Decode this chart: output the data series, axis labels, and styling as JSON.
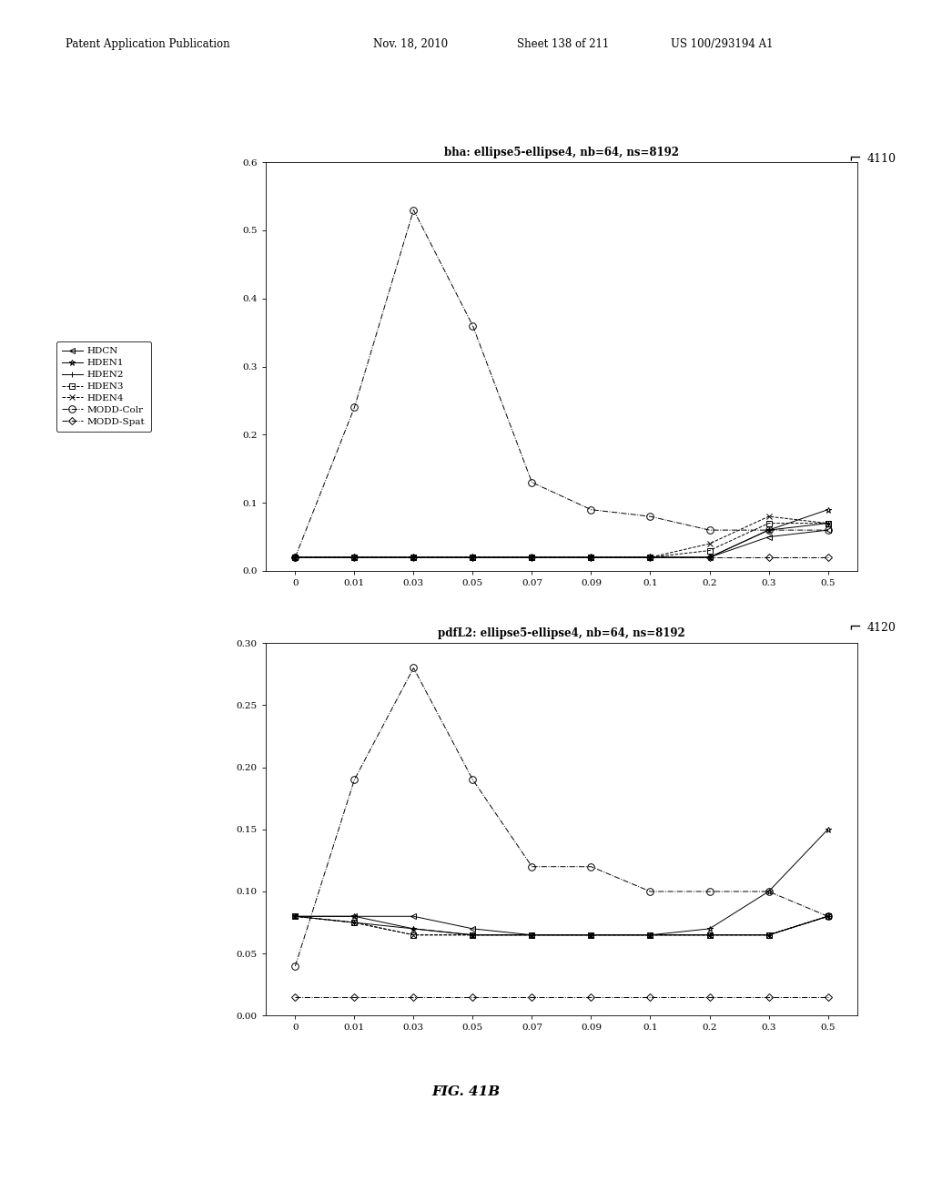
{
  "x_tick_labels": [
    "0",
    "0.01",
    "0.03",
    "0.05",
    "0.07",
    "0.09",
    "0.1",
    "0.2",
    "0.3",
    "0.5"
  ],
  "title1": "bha: ellipse5-ellipse4, nb=64, ns=8192",
  "label1": "4110",
  "ylim1": [
    0.0,
    0.6
  ],
  "yticks1": [
    0.0,
    0.1,
    0.2,
    0.3,
    0.4,
    0.5,
    0.6
  ],
  "ytick_labels1": [
    "0.0",
    "0.1",
    "0.2",
    "0.3",
    "0.4",
    "0.5",
    "0.6"
  ],
  "title2": "pdfL2: ellipse5-ellipse4, nb=64, ns=8192",
  "label2": "4120",
  "ylim2": [
    0.0,
    0.3
  ],
  "yticks2": [
    0.0,
    0.05,
    0.1,
    0.15,
    0.2,
    0.25,
    0.3
  ],
  "ytick_labels2": [
    "0.00",
    "0.05",
    "0.10",
    "0.15",
    "0.20",
    "0.25",
    "0.30"
  ],
  "HDCN_1": [
    0.02,
    0.02,
    0.02,
    0.02,
    0.02,
    0.02,
    0.02,
    0.02,
    0.05,
    0.06
  ],
  "HDEN1_1": [
    0.02,
    0.02,
    0.02,
    0.02,
    0.02,
    0.02,
    0.02,
    0.02,
    0.06,
    0.09
  ],
  "HDEN2_1": [
    0.02,
    0.02,
    0.02,
    0.02,
    0.02,
    0.02,
    0.02,
    0.02,
    0.06,
    0.07
  ],
  "HDEN3_1": [
    0.02,
    0.02,
    0.02,
    0.02,
    0.02,
    0.02,
    0.02,
    0.03,
    0.07,
    0.07
  ],
  "HDEN4_1": [
    0.02,
    0.02,
    0.02,
    0.02,
    0.02,
    0.02,
    0.02,
    0.04,
    0.08,
    0.07
  ],
  "MODD_Col_1": [
    0.02,
    0.24,
    0.53,
    0.36,
    0.13,
    0.09,
    0.08,
    0.06,
    0.06,
    0.06
  ],
  "MODD_Spat_1": [
    0.02,
    0.02,
    0.02,
    0.02,
    0.02,
    0.02,
    0.02,
    0.02,
    0.02,
    0.02
  ],
  "HDCN_2": [
    0.08,
    0.08,
    0.08,
    0.07,
    0.065,
    0.065,
    0.065,
    0.065,
    0.065,
    0.08
  ],
  "HDEN1_2": [
    0.08,
    0.08,
    0.07,
    0.065,
    0.065,
    0.065,
    0.065,
    0.07,
    0.1,
    0.15
  ],
  "HDEN2_2": [
    0.08,
    0.075,
    0.07,
    0.065,
    0.065,
    0.065,
    0.065,
    0.065,
    0.065,
    0.08
  ],
  "HDEN3_2": [
    0.08,
    0.075,
    0.065,
    0.065,
    0.065,
    0.065,
    0.065,
    0.065,
    0.065,
    0.08
  ],
  "HDEN4_2": [
    0.08,
    0.075,
    0.065,
    0.065,
    0.065,
    0.065,
    0.065,
    0.065,
    0.065,
    0.08
  ],
  "MODD_Col_2": [
    0.04,
    0.19,
    0.28,
    0.19,
    0.12,
    0.12,
    0.1,
    0.1,
    0.1,
    0.08
  ],
  "MODD_Spat_2": [
    0.015,
    0.015,
    0.015,
    0.015,
    0.015,
    0.015,
    0.015,
    0.015,
    0.015,
    0.015
  ],
  "fig_label": "FIG. 41B",
  "legend_entries": [
    "HDCN",
    "HDEN1",
    "HDEN2",
    "HDEN3",
    "HDEN4",
    "MODD-Colr",
    "MODD-Spat"
  ],
  "header1": "Patent Application Publication",
  "header2": "Nov. 18, 2010",
  "header3": "Sheet 138 of 211",
  "header4": "US 100/293194 A1"
}
